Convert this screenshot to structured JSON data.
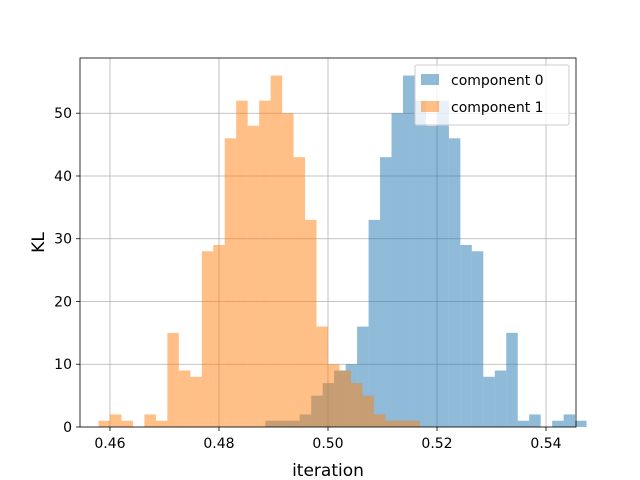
{
  "chart_data": {
    "type": "histogram",
    "xlabel": "iteration",
    "ylabel": "KL",
    "xlim": [
      0.4545,
      0.5455
    ],
    "ylim": [
      0,
      58.8
    ],
    "x_ticks": [
      0.46,
      0.48,
      0.5,
      0.52,
      0.54
    ],
    "x_tick_labels": [
      "0.46",
      "0.48",
      "0.50",
      "0.52",
      "0.54"
    ],
    "y_ticks": [
      0,
      10,
      20,
      30,
      40,
      50
    ],
    "y_tick_labels": [
      "0",
      "10",
      "20",
      "30",
      "40",
      "50"
    ],
    "grid": true,
    "legend_position": "top-right",
    "bin_width": 0.002105,
    "series": [
      {
        "name": "component 0",
        "color": "#1f77b4",
        "alpha": 0.5,
        "bin_start": 0.4885,
        "counts": [
          1,
          1,
          1,
          2,
          5,
          7,
          9,
          10,
          16,
          33,
          43,
          50,
          56,
          52,
          48,
          52,
          46,
          29,
          28,
          8,
          9,
          15,
          1,
          2,
          0,
          1,
          2,
          1
        ]
      },
      {
        "name": "component 1",
        "color": "#ff7f0e",
        "alpha": 0.5,
        "bin_start": 0.4579,
        "counts": [
          1,
          2,
          1,
          0,
          2,
          1,
          15,
          9,
          8,
          28,
          29,
          46,
          52,
          48,
          52,
          56,
          50,
          43,
          33,
          16,
          10,
          9,
          7,
          5,
          2,
          1,
          1,
          1
        ]
      }
    ]
  }
}
